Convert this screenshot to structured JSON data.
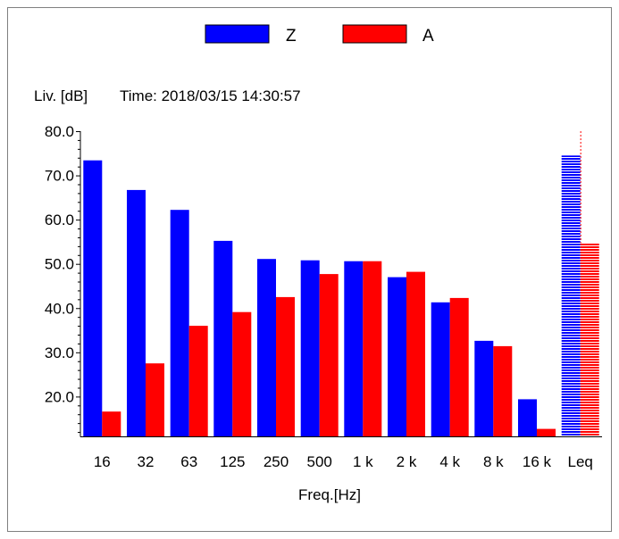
{
  "legend": [
    {
      "label": "Z",
      "color": "#0000ff"
    },
    {
      "label": "A",
      "color": "#ff0000"
    }
  ],
  "header": {
    "ylabel": "Liv. [dB]",
    "time": "Time: 2018/03/15 14:30:57"
  },
  "chart_data": {
    "type": "bar",
    "ylabel": "Liv. [dB]",
    "xlabel": "Freq.[Hz]",
    "ylim": [
      11,
      80
    ],
    "yticks": [
      20,
      30,
      40,
      50,
      60,
      70,
      80
    ],
    "ytick_labels": [
      "20.0",
      "30.0",
      "40.0",
      "50.0",
      "60.0",
      "70.0",
      "80.0"
    ],
    "categories": [
      "16",
      "32",
      "63",
      "125",
      "250",
      "500",
      "1 k",
      "2 k",
      "4 k",
      "8 k",
      "16 k",
      "Leq"
    ],
    "series": [
      {
        "name": "Z",
        "color": "#0000ff",
        "values": [
          73.4,
          66.7,
          62.2,
          55.2,
          51.1,
          50.8,
          50.6,
          47.0,
          41.3,
          32.6,
          19.4,
          74.5
        ]
      },
      {
        "name": "A",
        "color": "#ff0000",
        "values": [
          16.6,
          27.5,
          36.0,
          39.1,
          42.5,
          47.7,
          50.6,
          48.2,
          42.3,
          31.4,
          12.7,
          54.7
        ]
      }
    ],
    "legend_position": "top",
    "grid": false
  }
}
